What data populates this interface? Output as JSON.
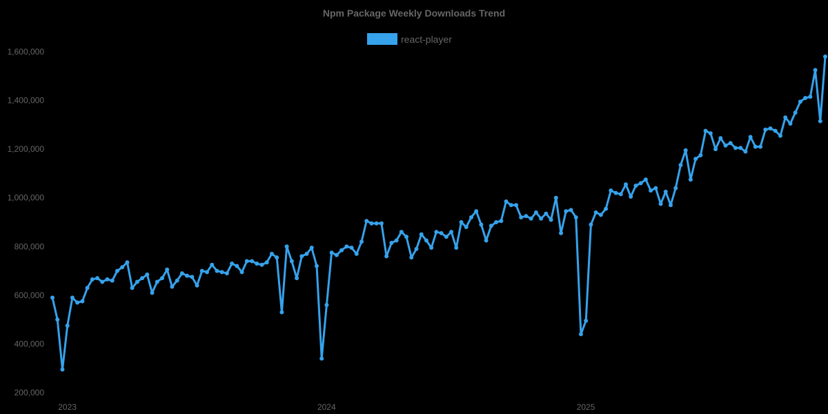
{
  "chart_data": {
    "type": "line",
    "title": "Npm Package Weekly Downloads Trend",
    "xlabel": "",
    "ylabel": "",
    "legend": {
      "position": "top",
      "entries": [
        "react-player"
      ]
    },
    "grid": false,
    "ylim": [
      200000,
      1600000
    ],
    "yticks": [
      200000,
      400000,
      600000,
      800000,
      1000000,
      1200000,
      1400000,
      1600000
    ],
    "ytick_labels": [
      "200,000",
      "400,000",
      "600,000",
      "800,000",
      "1,000,000",
      "1,200,000",
      "1,400,000",
      "1,600,000"
    ],
    "xticks": [
      {
        "label": "2023",
        "week_index": 1
      },
      {
        "label": "2024",
        "week_index": 53
      },
      {
        "label": "2025",
        "week_index": 105
      }
    ],
    "series": [
      {
        "name": "react-player",
        "color": "#36a2eb",
        "values": [
          590000,
          500000,
          295000,
          475000,
          590000,
          570000,
          575000,
          630000,
          665000,
          670000,
          655000,
          665000,
          660000,
          700000,
          715000,
          735000,
          630000,
          655000,
          670000,
          685000,
          610000,
          655000,
          670000,
          705000,
          635000,
          660000,
          690000,
          680000,
          675000,
          640000,
          700000,
          695000,
          725000,
          700000,
          695000,
          690000,
          730000,
          720000,
          695000,
          740000,
          740000,
          730000,
          725000,
          735000,
          770000,
          755000,
          530000,
          800000,
          740000,
          670000,
          760000,
          770000,
          795000,
          720000,
          340000,
          560000,
          775000,
          765000,
          785000,
          800000,
          795000,
          770000,
          820000,
          905000,
          895000,
          895000,
          895000,
          760000,
          815000,
          825000,
          860000,
          840000,
          755000,
          790000,
          850000,
          825000,
          795000,
          860000,
          855000,
          840000,
          860000,
          795000,
          900000,
          880000,
          920000,
          945000,
          890000,
          825000,
          885000,
          900000,
          905000,
          985000,
          970000,
          970000,
          920000,
          925000,
          915000,
          940000,
          915000,
          935000,
          910000,
          1000000,
          855000,
          945000,
          950000,
          920000,
          440000,
          495000,
          890000,
          940000,
          930000,
          955000,
          1030000,
          1020000,
          1015000,
          1055000,
          1005000,
          1050000,
          1060000,
          1075000,
          1030000,
          1040000,
          975000,
          1025000,
          970000,
          1040000,
          1135000,
          1195000,
          1075000,
          1160000,
          1175000,
          1275000,
          1265000,
          1200000,
          1245000,
          1215000,
          1225000,
          1205000,
          1205000,
          1190000,
          1250000,
          1210000,
          1210000,
          1280000,
          1285000,
          1275000,
          1255000,
          1330000,
          1305000,
          1350000,
          1395000,
          1410000,
          1415000,
          1525000,
          1315000,
          1580000
        ]
      }
    ]
  }
}
